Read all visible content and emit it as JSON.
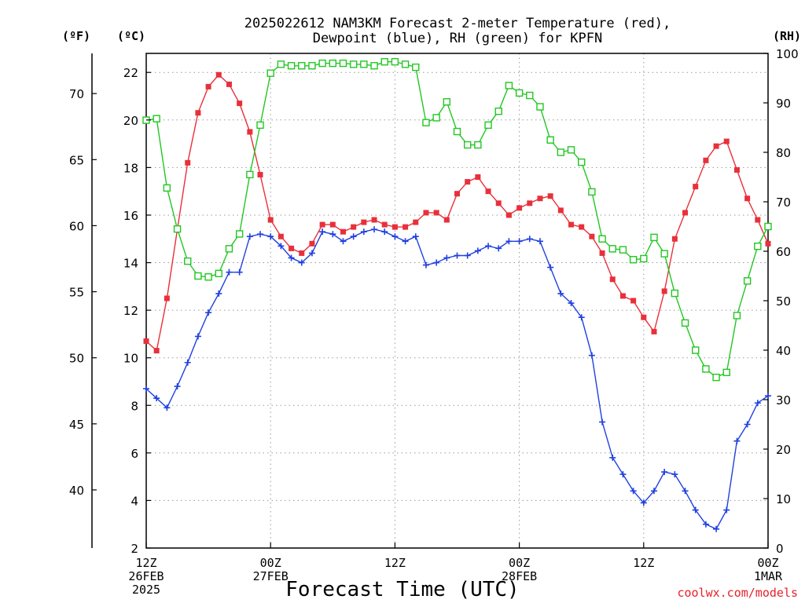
{
  "chart_data": {
    "type": "line",
    "title_line1": "2025022612 NAM3KM Forecast 2-meter Temperature (red),",
    "title_line2": "Dewpoint (blue), RH (green) for KPFN",
    "xlabel": "Forecast Time (UTC)",
    "left_unit_f": "(ºF)",
    "left_unit_c": "(ºC)",
    "right_unit": "(RH)",
    "credit": "coolwx.com/models",
    "x_ticks": [
      {
        "hour": 0,
        "l1": "12Z",
        "l2": "26FEB",
        "l3": "2025"
      },
      {
        "hour": 12,
        "l1": "00Z",
        "l2": "27FEB",
        "l3": ""
      },
      {
        "hour": 24,
        "l1": "12Z",
        "l2": "",
        "l3": ""
      },
      {
        "hour": 36,
        "l1": "00Z",
        "l2": "28FEB",
        "l3": ""
      },
      {
        "hour": 48,
        "l1": "12Z",
        "l2": "",
        "l3": ""
      },
      {
        "hour": 60,
        "l1": "00Z",
        "l2": "1MAR",
        "l3": ""
      }
    ],
    "x_range": [
      0,
      60
    ],
    "y_c_range": [
      2,
      22.8
    ],
    "y_c_ticks": [
      2,
      4,
      6,
      8,
      10,
      12,
      14,
      16,
      18,
      20,
      22
    ],
    "y_f_ticks": [
      40,
      45,
      50,
      55,
      60,
      65,
      70
    ],
    "y_rh_range": [
      0,
      100
    ],
    "y_rh_ticks": [
      0,
      10,
      20,
      30,
      40,
      50,
      60,
      70,
      80,
      90,
      100
    ],
    "grid": true,
    "colors": {
      "temperature": "#e8303a",
      "dewpoint": "#2040e0",
      "rh": "#22c722"
    },
    "series": [
      {
        "key": "temperature",
        "axis": "c",
        "values": [
          10.7,
          10.3,
          12.5,
          15.4,
          18.2,
          20.3,
          21.4,
          21.9,
          21.5,
          20.7,
          19.5,
          17.7,
          15.8,
          15.1,
          14.6,
          14.4,
          14.8,
          15.6,
          15.6,
          15.3,
          15.5,
          15.7,
          15.8,
          15.6,
          15.5,
          15.5,
          15.7,
          16.1,
          16.1,
          15.8,
          16.9,
          17.4,
          17.6,
          17.0,
          16.5,
          16.0,
          16.3,
          16.5,
          16.7,
          16.8,
          16.2,
          15.6,
          15.5,
          15.1,
          14.4,
          13.3,
          12.6,
          12.4,
          11.7,
          11.1,
          12.8,
          15.0,
          16.1,
          17.2,
          18.3,
          18.9,
          19.1,
          17.9,
          16.7,
          15.8,
          14.8
        ]
      },
      {
        "key": "dewpoint",
        "axis": "c",
        "values": [
          8.7,
          8.3,
          7.9,
          8.8,
          9.8,
          10.9,
          11.9,
          12.7,
          13.6,
          13.6,
          15.1,
          15.2,
          15.1,
          14.7,
          14.2,
          14.0,
          14.4,
          15.3,
          15.2,
          14.9,
          15.1,
          15.3,
          15.4,
          15.3,
          15.1,
          14.9,
          15.1,
          13.9,
          14.0,
          14.2,
          14.3,
          14.3,
          14.5,
          14.7,
          14.6,
          14.9,
          14.9,
          15.0,
          14.9,
          13.8,
          12.7,
          12.3,
          11.7,
          10.1,
          7.3,
          5.8,
          5.1,
          4.4,
          3.9,
          4.4,
          5.2,
          5.1,
          4.4,
          3.6,
          3.0,
          2.8,
          3.6,
          6.5,
          7.2,
          8.1,
          8.4
        ]
      },
      {
        "key": "rh",
        "axis": "rh",
        "values": [
          86.5,
          86.8,
          72.8,
          64.5,
          58.0,
          55.0,
          54.8,
          55.5,
          60.5,
          63.5,
          75.5,
          85.5,
          96.0,
          97.8,
          97.5,
          97.5,
          97.5,
          98.0,
          98.0,
          98.0,
          97.8,
          97.8,
          97.5,
          98.3,
          98.3,
          97.8,
          97.2,
          86.0,
          87.0,
          90.2,
          84.2,
          81.5,
          81.5,
          85.5,
          88.3,
          93.5,
          92.0,
          91.5,
          89.2,
          82.5,
          80.0,
          80.5,
          78.0,
          72.0,
          62.5,
          60.5,
          60.3,
          58.3,
          58.5,
          62.8,
          59.5,
          51.5,
          45.5,
          40.0,
          36.2,
          34.5,
          35.5,
          47.0,
          54.0,
          61.0,
          65.0
        ]
      }
    ]
  }
}
